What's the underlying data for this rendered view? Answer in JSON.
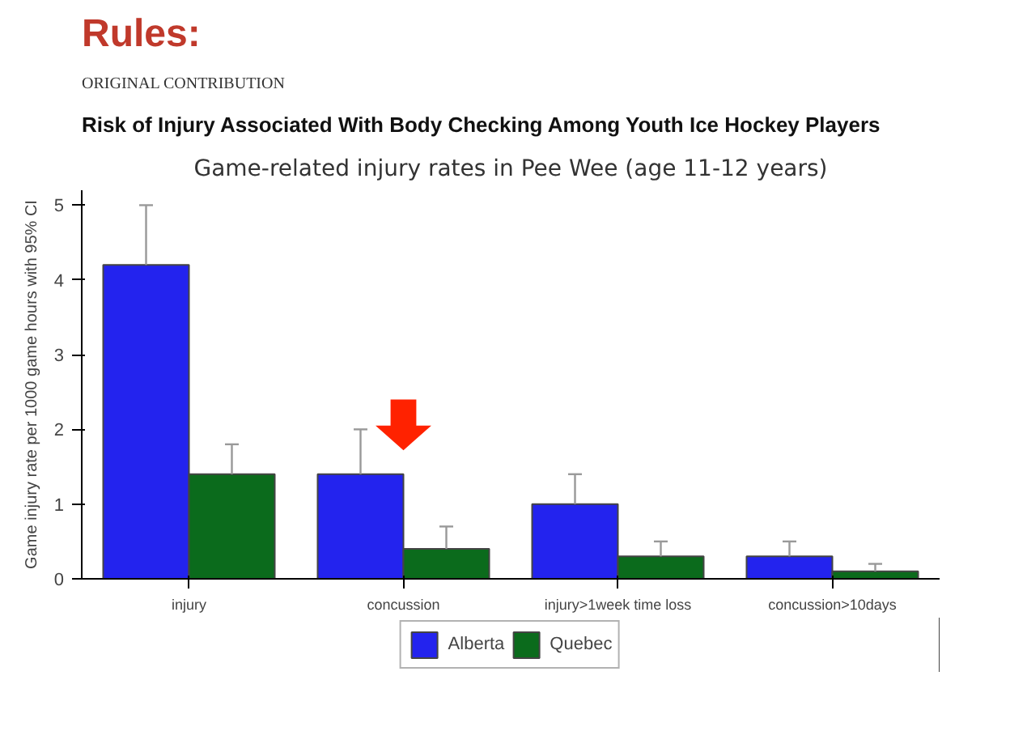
{
  "chart_data": {
    "type": "bar",
    "title": "Game-related injury rates in Pee Wee (age 11-12 years)",
    "ylabel": "Game injury rate per 1000 game hours with 95% CI",
    "annotations": [
      "Rules:",
      "ORIGINAL CONTRIBUTION",
      "Risk of Injury Associated With Body Checking Among Youth Ice Hockey Players"
    ],
    "categories": [
      "injury",
      "concussion",
      "injury>1week time loss",
      "concussion>10days"
    ],
    "series": [
      {
        "name": "Alberta",
        "color": "#2323ee",
        "values": [
          4.2,
          1.4,
          1.0,
          0.3
        ],
        "errors": [
          [
            4.2,
            5.0
          ],
          [
            1.4,
            2.0
          ],
          [
            1.0,
            1.4
          ],
          [
            0.3,
            0.5
          ]
        ]
      },
      {
        "name": "Quebec",
        "color": "#0b6b1c",
        "values": [
          1.4,
          0.4,
          0.3,
          0.1
        ],
        "errors": [
          [
            1.4,
            1.8
          ],
          [
            0.4,
            0.7
          ],
          [
            0.3,
            0.5
          ],
          [
            0.1,
            0.2
          ]
        ]
      }
    ],
    "ylim": [
      0,
      5.2
    ],
    "yticks": [
      0,
      1,
      2,
      3,
      4,
      5
    ],
    "grid": false,
    "legend": "bottom"
  }
}
